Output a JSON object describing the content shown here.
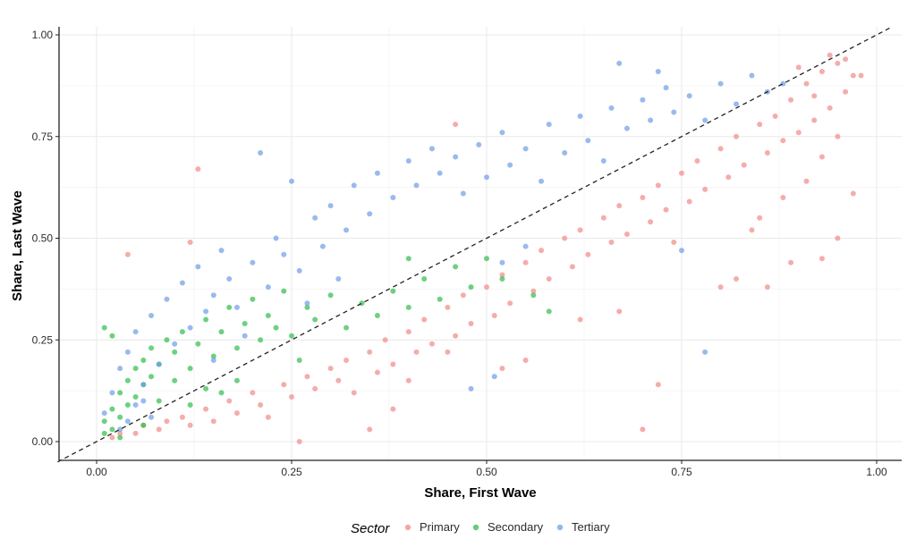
{
  "chart_data": {
    "type": "scatter",
    "xlabel": "Share, First Wave",
    "ylabel": "Share, Last Wave",
    "xlim": [
      0,
      1
    ],
    "ylim": [
      0,
      1
    ],
    "x_ticks": [
      0,
      0.25,
      0.5,
      0.75,
      1
    ],
    "y_ticks": [
      0,
      0.25,
      0.5,
      0.75,
      1
    ],
    "x_tick_labels": [
      "0.00",
      "0.25",
      "0.50",
      "0.75",
      "1.00"
    ],
    "y_tick_labels": [
      "0.00",
      "0.25",
      "0.50",
      "0.75",
      "1.00"
    ],
    "grid": true,
    "reference_line": "y = x (dashed)",
    "legend": {
      "title": "Sector",
      "position": "bottom"
    },
    "series": [
      {
        "name": "Primary",
        "color": "#f08a84",
        "points": [
          [
            0.02,
            0.01
          ],
          [
            0.03,
            0.02
          ],
          [
            0.05,
            0.02
          ],
          [
            0.06,
            0.04
          ],
          [
            0.08,
            0.03
          ],
          [
            0.09,
            0.05
          ],
          [
            0.11,
            0.06
          ],
          [
            0.12,
            0.04
          ],
          [
            0.14,
            0.08
          ],
          [
            0.15,
            0.05
          ],
          [
            0.17,
            0.1
          ],
          [
            0.18,
            0.07
          ],
          [
            0.2,
            0.12
          ],
          [
            0.21,
            0.09
          ],
          [
            0.22,
            0.06
          ],
          [
            0.24,
            0.14
          ],
          [
            0.25,
            0.11
          ],
          [
            0.26,
            0.0
          ],
          [
            0.27,
            0.16
          ],
          [
            0.28,
            0.13
          ],
          [
            0.3,
            0.18
          ],
          [
            0.31,
            0.15
          ],
          [
            0.32,
            0.2
          ],
          [
            0.33,
            0.12
          ],
          [
            0.35,
            0.22
          ],
          [
            0.36,
            0.17
          ],
          [
            0.37,
            0.25
          ],
          [
            0.38,
            0.19
          ],
          [
            0.4,
            0.27
          ],
          [
            0.41,
            0.22
          ],
          [
            0.42,
            0.3
          ],
          [
            0.43,
            0.24
          ],
          [
            0.45,
            0.33
          ],
          [
            0.46,
            0.26
          ],
          [
            0.47,
            0.36
          ],
          [
            0.48,
            0.29
          ],
          [
            0.5,
            0.38
          ],
          [
            0.51,
            0.31
          ],
          [
            0.52,
            0.41
          ],
          [
            0.53,
            0.34
          ],
          [
            0.55,
            0.44
          ],
          [
            0.56,
            0.37
          ],
          [
            0.57,
            0.47
          ],
          [
            0.58,
            0.4
          ],
          [
            0.6,
            0.5
          ],
          [
            0.61,
            0.43
          ],
          [
            0.62,
            0.52
          ],
          [
            0.63,
            0.46
          ],
          [
            0.65,
            0.55
          ],
          [
            0.66,
            0.49
          ],
          [
            0.67,
            0.58
          ],
          [
            0.68,
            0.51
          ],
          [
            0.7,
            0.6
          ],
          [
            0.71,
            0.54
          ],
          [
            0.72,
            0.63
          ],
          [
            0.73,
            0.57
          ],
          [
            0.75,
            0.66
          ],
          [
            0.76,
            0.59
          ],
          [
            0.77,
            0.69
          ],
          [
            0.78,
            0.62
          ],
          [
            0.8,
            0.72
          ],
          [
            0.81,
            0.65
          ],
          [
            0.82,
            0.75
          ],
          [
            0.83,
            0.68
          ],
          [
            0.85,
            0.78
          ],
          [
            0.86,
            0.71
          ],
          [
            0.87,
            0.8
          ],
          [
            0.88,
            0.74
          ],
          [
            0.89,
            0.84
          ],
          [
            0.9,
            0.76
          ],
          [
            0.91,
            0.88
          ],
          [
            0.92,
            0.79
          ],
          [
            0.93,
            0.91
          ],
          [
            0.94,
            0.82
          ],
          [
            0.95,
            0.93
          ],
          [
            0.96,
            0.86
          ],
          [
            0.97,
            0.9
          ],
          [
            0.93,
            0.7
          ],
          [
            0.95,
            0.75
          ],
          [
            0.92,
            0.85
          ],
          [
            0.9,
            0.92
          ],
          [
            0.94,
            0.95
          ],
          [
            0.96,
            0.94
          ],
          [
            0.91,
            0.64
          ],
          [
            0.88,
            0.6
          ],
          [
            0.85,
            0.55
          ],
          [
            0.82,
            0.4
          ],
          [
            0.8,
            0.38
          ],
          [
            0.74,
            0.49
          ],
          [
            0.72,
            0.14
          ],
          [
            0.7,
            0.03
          ],
          [
            0.67,
            0.32
          ],
          [
            0.62,
            0.3
          ],
          [
            0.55,
            0.2
          ],
          [
            0.52,
            0.18
          ],
          [
            0.46,
            0.78
          ],
          [
            0.45,
            0.22
          ],
          [
            0.4,
            0.15
          ],
          [
            0.38,
            0.08
          ],
          [
            0.13,
            0.67
          ],
          [
            0.12,
            0.49
          ],
          [
            0.04,
            0.46
          ],
          [
            0.35,
            0.03
          ],
          [
            0.98,
            0.9
          ],
          [
            0.97,
            0.61
          ],
          [
            0.86,
            0.38
          ],
          [
            0.84,
            0.52
          ],
          [
            0.93,
            0.45
          ],
          [
            0.89,
            0.44
          ],
          [
            0.95,
            0.5
          ]
        ]
      },
      {
        "name": "Secondary",
        "color": "#2ebd4a",
        "points": [
          [
            0.01,
            0.02
          ],
          [
            0.01,
            0.05
          ],
          [
            0.02,
            0.08
          ],
          [
            0.02,
            0.03
          ],
          [
            0.03,
            0.12
          ],
          [
            0.03,
            0.06
          ],
          [
            0.04,
            0.15
          ],
          [
            0.04,
            0.09
          ],
          [
            0.05,
            0.18
          ],
          [
            0.05,
            0.11
          ],
          [
            0.06,
            0.2
          ],
          [
            0.06,
            0.14
          ],
          [
            0.07,
            0.23
          ],
          [
            0.07,
            0.16
          ],
          [
            0.08,
            0.19
          ],
          [
            0.09,
            0.25
          ],
          [
            0.1,
            0.22
          ],
          [
            0.1,
            0.15
          ],
          [
            0.11,
            0.27
          ],
          [
            0.12,
            0.18
          ],
          [
            0.13,
            0.24
          ],
          [
            0.14,
            0.3
          ],
          [
            0.15,
            0.21
          ],
          [
            0.16,
            0.27
          ],
          [
            0.17,
            0.33
          ],
          [
            0.18,
            0.23
          ],
          [
            0.19,
            0.29
          ],
          [
            0.2,
            0.35
          ],
          [
            0.21,
            0.25
          ],
          [
            0.22,
            0.31
          ],
          [
            0.23,
            0.28
          ],
          [
            0.24,
            0.37
          ],
          [
            0.25,
            0.26
          ],
          [
            0.27,
            0.33
          ],
          [
            0.28,
            0.3
          ],
          [
            0.3,
            0.36
          ],
          [
            0.32,
            0.28
          ],
          [
            0.34,
            0.34
          ],
          [
            0.36,
            0.31
          ],
          [
            0.38,
            0.37
          ],
          [
            0.4,
            0.33
          ],
          [
            0.42,
            0.4
          ],
          [
            0.44,
            0.35
          ],
          [
            0.46,
            0.43
          ],
          [
            0.48,
            0.38
          ],
          [
            0.5,
            0.45
          ],
          [
            0.52,
            0.4
          ],
          [
            0.56,
            0.36
          ],
          [
            0.58,
            0.32
          ],
          [
            0.4,
            0.45
          ],
          [
            0.01,
            0.28
          ],
          [
            0.02,
            0.26
          ],
          [
            0.08,
            0.1
          ],
          [
            0.12,
            0.09
          ],
          [
            0.14,
            0.13
          ],
          [
            0.06,
            0.04
          ],
          [
            0.03,
            0.01
          ],
          [
            0.18,
            0.15
          ],
          [
            0.16,
            0.12
          ],
          [
            0.26,
            0.2
          ]
        ]
      },
      {
        "name": "Tertiary",
        "color": "#6e9de8",
        "points": [
          [
            0.01,
            0.07
          ],
          [
            0.02,
            0.12
          ],
          [
            0.03,
            0.18
          ],
          [
            0.04,
            0.22
          ],
          [
            0.05,
            0.27
          ],
          [
            0.06,
            0.14
          ],
          [
            0.07,
            0.31
          ],
          [
            0.08,
            0.19
          ],
          [
            0.09,
            0.35
          ],
          [
            0.1,
            0.24
          ],
          [
            0.11,
            0.39
          ],
          [
            0.12,
            0.28
          ],
          [
            0.13,
            0.43
          ],
          [
            0.14,
            0.32
          ],
          [
            0.15,
            0.36
          ],
          [
            0.16,
            0.47
          ],
          [
            0.17,
            0.4
          ],
          [
            0.18,
            0.33
          ],
          [
            0.2,
            0.44
          ],
          [
            0.21,
            0.71
          ],
          [
            0.22,
            0.38
          ],
          [
            0.23,
            0.5
          ],
          [
            0.24,
            0.46
          ],
          [
            0.25,
            0.64
          ],
          [
            0.26,
            0.42
          ],
          [
            0.28,
            0.55
          ],
          [
            0.29,
            0.48
          ],
          [
            0.3,
            0.58
          ],
          [
            0.32,
            0.52
          ],
          [
            0.33,
            0.63
          ],
          [
            0.35,
            0.56
          ],
          [
            0.36,
            0.66
          ],
          [
            0.38,
            0.6
          ],
          [
            0.4,
            0.69
          ],
          [
            0.41,
            0.63
          ],
          [
            0.43,
            0.72
          ],
          [
            0.44,
            0.66
          ],
          [
            0.46,
            0.7
          ],
          [
            0.47,
            0.61
          ],
          [
            0.49,
            0.73
          ],
          [
            0.5,
            0.65
          ],
          [
            0.52,
            0.76
          ],
          [
            0.53,
            0.68
          ],
          [
            0.55,
            0.72
          ],
          [
            0.57,
            0.64
          ],
          [
            0.58,
            0.78
          ],
          [
            0.6,
            0.71
          ],
          [
            0.62,
            0.8
          ],
          [
            0.63,
            0.74
          ],
          [
            0.65,
            0.69
          ],
          [
            0.66,
            0.82
          ],
          [
            0.68,
            0.77
          ],
          [
            0.7,
            0.84
          ],
          [
            0.71,
            0.79
          ],
          [
            0.73,
            0.87
          ],
          [
            0.74,
            0.81
          ],
          [
            0.76,
            0.85
          ],
          [
            0.78,
            0.79
          ],
          [
            0.8,
            0.88
          ],
          [
            0.82,
            0.83
          ],
          [
            0.84,
            0.9
          ],
          [
            0.86,
            0.86
          ],
          [
            0.88,
            0.88
          ],
          [
            0.72,
            0.91
          ],
          [
            0.67,
            0.93
          ],
          [
            0.55,
            0.48
          ],
          [
            0.52,
            0.44
          ],
          [
            0.78,
            0.22
          ],
          [
            0.75,
            0.47
          ],
          [
            0.48,
            0.13
          ],
          [
            0.51,
            0.16
          ],
          [
            0.04,
            0.05
          ],
          [
            0.05,
            0.09
          ],
          [
            0.03,
            0.03
          ],
          [
            0.06,
            0.1
          ],
          [
            0.07,
            0.06
          ],
          [
            0.15,
            0.2
          ],
          [
            0.19,
            0.26
          ],
          [
            0.27,
            0.34
          ],
          [
            0.31,
            0.4
          ]
        ]
      }
    ]
  }
}
